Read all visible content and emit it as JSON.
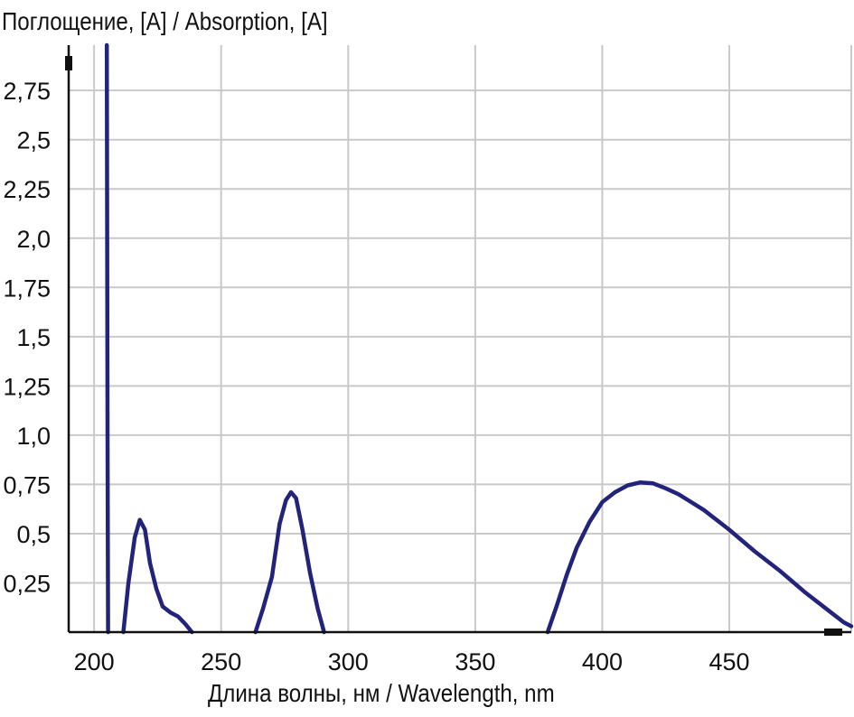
{
  "chart_data": {
    "type": "line",
    "ylabel": "Поглощение, [A] / Absorption, [A]",
    "xlabel": "Длина волны, нм / Wavelength, nm",
    "xlim": [
      190,
      498
    ],
    "ylim": [
      0,
      2.98
    ],
    "grid": true,
    "color": "#22237a",
    "x_ticks": [
      200,
      250,
      300,
      350,
      400,
      450
    ],
    "x_tick_labels": [
      "200",
      "250",
      "300",
      "350",
      "400",
      "450"
    ],
    "y_ticks": [
      0.25,
      0.5,
      0.75,
      1.0,
      1.25,
      1.5,
      1.75,
      2.0,
      2.25,
      2.5,
      2.75
    ],
    "y_tick_labels": [
      "0,25",
      "0,5",
      "0,75",
      "1,0",
      "1,25",
      "1,5",
      "1,75",
      "2,0",
      "2,25",
      "2,5",
      "2,75"
    ],
    "series": [
      {
        "segments": [
          [
            [
              205.0,
              2.98
            ],
            [
              205.3,
              1.0
            ],
            [
              205.5,
              0.0
            ]
          ],
          [
            [
              211.5,
              0.0
            ],
            [
              213.5,
              0.25
            ],
            [
              216.0,
              0.48
            ],
            [
              218.0,
              0.57
            ],
            [
              220.0,
              0.52
            ],
            [
              222.0,
              0.35
            ],
            [
              224.5,
              0.22
            ],
            [
              227.0,
              0.13
            ],
            [
              230.0,
              0.1
            ],
            [
              233.0,
              0.08
            ],
            [
              236.0,
              0.04
            ],
            [
              238.5,
              0.0
            ]
          ],
          [
            [
              263.5,
              0.0
            ],
            [
              266.5,
              0.12
            ],
            [
              270.0,
              0.28
            ],
            [
              273.0,
              0.55
            ],
            [
              275.5,
              0.67
            ],
            [
              277.5,
              0.71
            ],
            [
              279.5,
              0.68
            ],
            [
              282.0,
              0.52
            ],
            [
              285.0,
              0.3
            ],
            [
              288.0,
              0.12
            ],
            [
              290.5,
              0.0
            ]
          ],
          [
            [
              378.5,
              0.0
            ],
            [
              382.0,
              0.13
            ],
            [
              386.0,
              0.29
            ],
            [
              390.0,
              0.43
            ],
            [
              395.0,
              0.56
            ],
            [
              400.0,
              0.66
            ],
            [
              405.0,
              0.71
            ],
            [
              410.0,
              0.745
            ],
            [
              415.0,
              0.76
            ],
            [
              420.0,
              0.755
            ],
            [
              425.0,
              0.73
            ],
            [
              430.0,
              0.7
            ],
            [
              440.0,
              0.62
            ],
            [
              450.0,
              0.52
            ],
            [
              460.0,
              0.41
            ],
            [
              470.0,
              0.31
            ],
            [
              480.0,
              0.2
            ],
            [
              490.0,
              0.1
            ],
            [
              495.0,
              0.05
            ],
            [
              498.0,
              0.03
            ]
          ]
        ]
      }
    ]
  }
}
